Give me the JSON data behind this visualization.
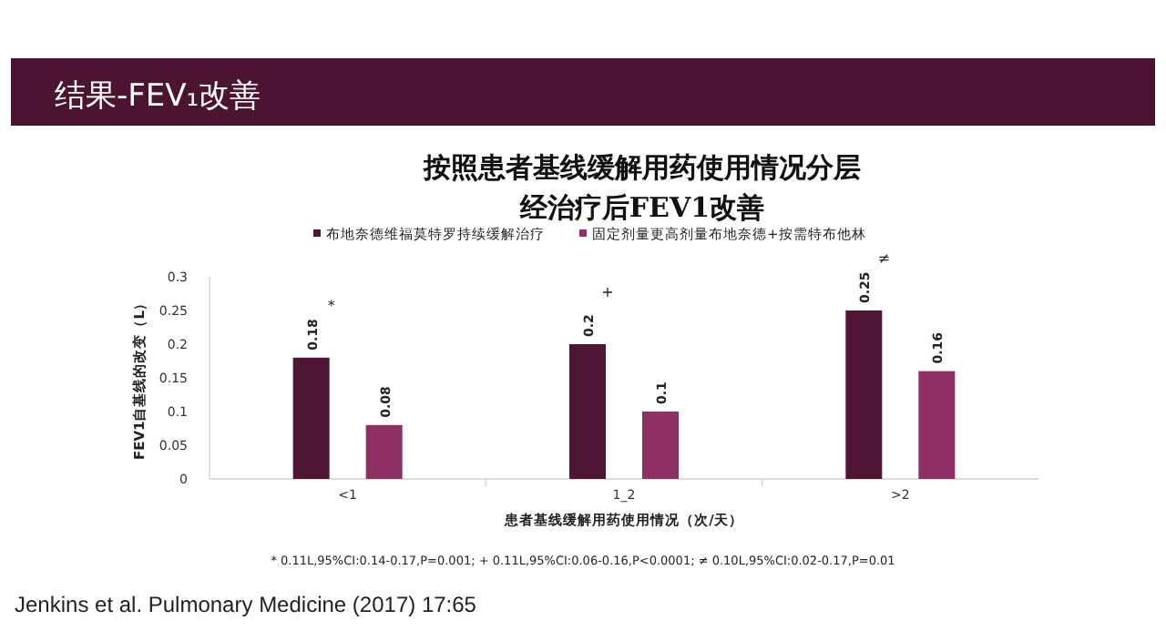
{
  "chart_data": {
    "type": "bar",
    "title": "结果-FEV₁改善",
    "subtitle": "按照患者基线缓解用药使用情况分层经治疗后FEV1改善",
    "categories": [
      "<1",
      "1_2",
      ">2"
    ],
    "series": [
      {
        "name": "布地奈德维福莫特罗持续缓解治疗",
        "color": "#4f1535",
        "values": [
          0.18,
          0.2,
          0.25
        ]
      },
      {
        "name": "固定剂量更高剂量布地奈德+按需特布他林",
        "color": "#8e3063",
        "values": [
          0.08,
          0.1,
          0.16
        ]
      }
    ],
    "xlabel": "患者基线缓解用药使用情况（次/天）",
    "ylabel": "FEV1自基线的改变（L）",
    "ylim": [
      0,
      0.3
    ],
    "yticks": [
      0,
      0.05,
      0.1,
      0.15,
      0.2,
      0.25,
      0.3
    ],
    "data_labels": true,
    "legend": "top",
    "grid": false,
    "annotations": [
      "*",
      "+",
      "≠",
      "*  0.11L,95%CI:0.14-0.17,P=0.001;    +  0.11L,95%CI:0.06-0.16,P<0.0001;    ≠  0.10L,95%CI:0.02-0.17,P=0.01",
      "Jenkins et al. Pulmonary Medicine (2017) 17:65"
    ]
  }
}
